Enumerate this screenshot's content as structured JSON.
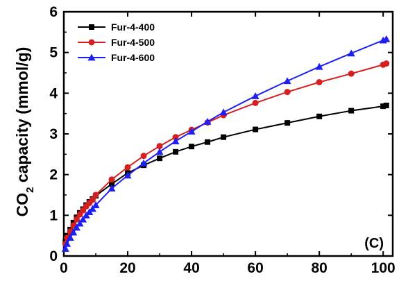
{
  "chart_data": {
    "type": "line",
    "title": "",
    "xlabel": "",
    "ylabel_main": "CO",
    "ylabel_sub": "2",
    "ylabel_rest": " capacity (mmol/g)",
    "panel_label": "(C)",
    "xlim": [
      0,
      103
    ],
    "ylim": [
      0,
      6
    ],
    "xticks": [
      0,
      20,
      40,
      60,
      80,
      100
    ],
    "yticks": [
      0,
      1,
      2,
      3,
      4,
      5,
      6
    ],
    "legend_position": "top-left",
    "series": [
      {
        "name": "Fur-4-400",
        "color": "#000000",
        "marker": "square",
        "x": [
          0.5,
          1,
          2,
          3,
          4,
          5,
          6,
          7,
          8,
          9,
          10,
          15,
          20,
          25,
          30,
          35,
          40,
          45,
          50,
          60,
          70,
          80,
          90,
          100,
          101
        ],
        "y": [
          0.35,
          0.5,
          0.65,
          0.82,
          0.95,
          1.06,
          1.15,
          1.25,
          1.33,
          1.4,
          1.48,
          1.77,
          2.04,
          2.23,
          2.4,
          2.56,
          2.69,
          2.8,
          2.92,
          3.11,
          3.27,
          3.43,
          3.57,
          3.68,
          3.7
        ]
      },
      {
        "name": "Fur-4-500",
        "color": "#d42020",
        "marker": "circle",
        "x": [
          0.5,
          1,
          2,
          3,
          4,
          5,
          6,
          7,
          8,
          9,
          10,
          15,
          20,
          25,
          30,
          35,
          40,
          45,
          50,
          60,
          70,
          80,
          90,
          100,
          101
        ],
        "y": [
          0.3,
          0.45,
          0.6,
          0.75,
          0.9,
          1.02,
          1.12,
          1.22,
          1.3,
          1.38,
          1.5,
          1.88,
          2.18,
          2.46,
          2.7,
          2.92,
          3.1,
          3.28,
          3.46,
          3.76,
          4.03,
          4.27,
          4.48,
          4.7,
          4.73
        ]
      },
      {
        "name": "Fur-4-600",
        "color": "#1f1ff0",
        "marker": "triangle",
        "x": [
          0.5,
          1,
          2,
          3,
          4,
          5,
          6,
          7,
          8,
          9,
          10,
          15,
          20,
          25,
          30,
          35,
          40,
          45,
          50,
          60,
          70,
          80,
          90,
          100,
          101
        ],
        "y": [
          0.18,
          0.3,
          0.45,
          0.58,
          0.7,
          0.8,
          0.9,
          1.0,
          1.08,
          1.16,
          1.25,
          1.66,
          1.98,
          2.28,
          2.56,
          2.82,
          3.06,
          3.3,
          3.53,
          3.93,
          4.3,
          4.65,
          4.98,
          5.3,
          5.33
        ]
      }
    ]
  }
}
